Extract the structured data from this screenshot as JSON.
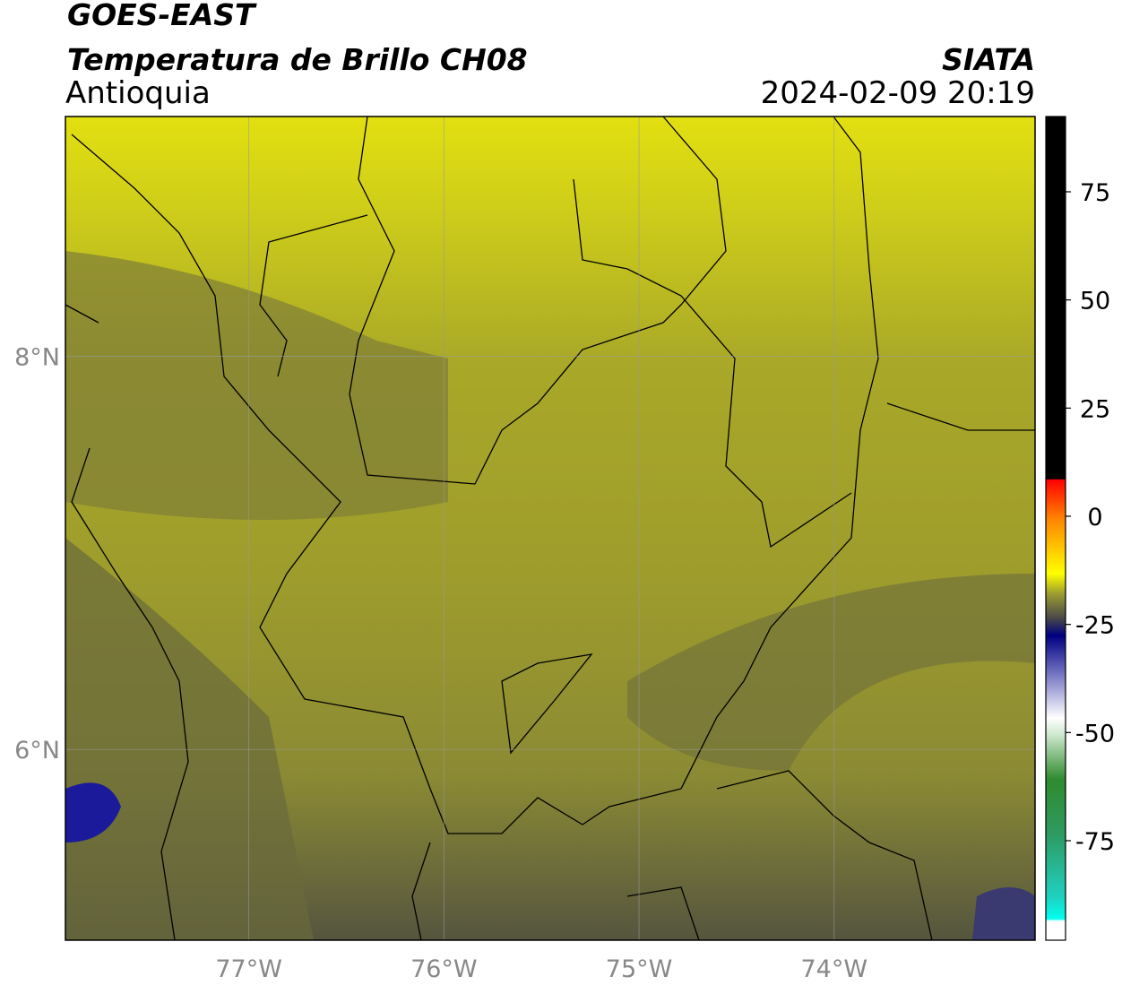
{
  "header": {
    "satellite": "GOES-EAST",
    "product": "Temperatura de Brillo CH08",
    "region": "Antioquia",
    "source": "SIATA",
    "datetime": "2024-02-09 20:19"
  },
  "map": {
    "xlim": [
      -77.94,
      -72.97
    ],
    "ylim": [
      5.03,
      9.22
    ],
    "xticks": [
      {
        "value": -77,
        "label": "77°W"
      },
      {
        "value": -76,
        "label": "76°W"
      },
      {
        "value": -75,
        "label": "75°W"
      },
      {
        "value": -74,
        "label": "74°W"
      }
    ],
    "yticks": [
      {
        "value": 8,
        "label": "8°N"
      },
      {
        "value": 6,
        "label": "6°N"
      }
    ],
    "grid": true
  },
  "colorbar": {
    "lim": [
      -98,
      92.4
    ],
    "ticks": [
      75,
      50,
      25,
      0,
      -25,
      -50,
      -75
    ]
  }
}
